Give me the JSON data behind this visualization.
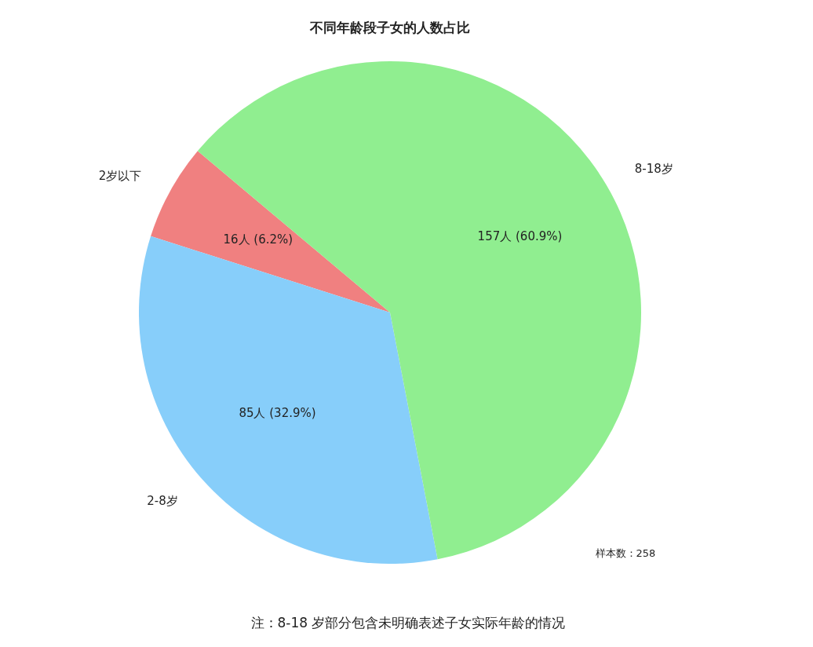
{
  "chart_data": {
    "type": "pie",
    "title": "不同年龄段子女的人数占比",
    "categories": [
      "2岁以下",
      "2-8岁",
      "8-18岁"
    ],
    "values": [
      16,
      85,
      157
    ],
    "colors": [
      "#f08080",
      "#87cefa",
      "#90ee90"
    ],
    "value_labels": [
      "16人 (6.2%)",
      "85人 (32.9%)",
      "157人 (60.9%)"
    ],
    "annotations": [
      "样本数：258",
      "注：8-18 岁部分包含未明确表述子女实际年龄的情况"
    ]
  }
}
